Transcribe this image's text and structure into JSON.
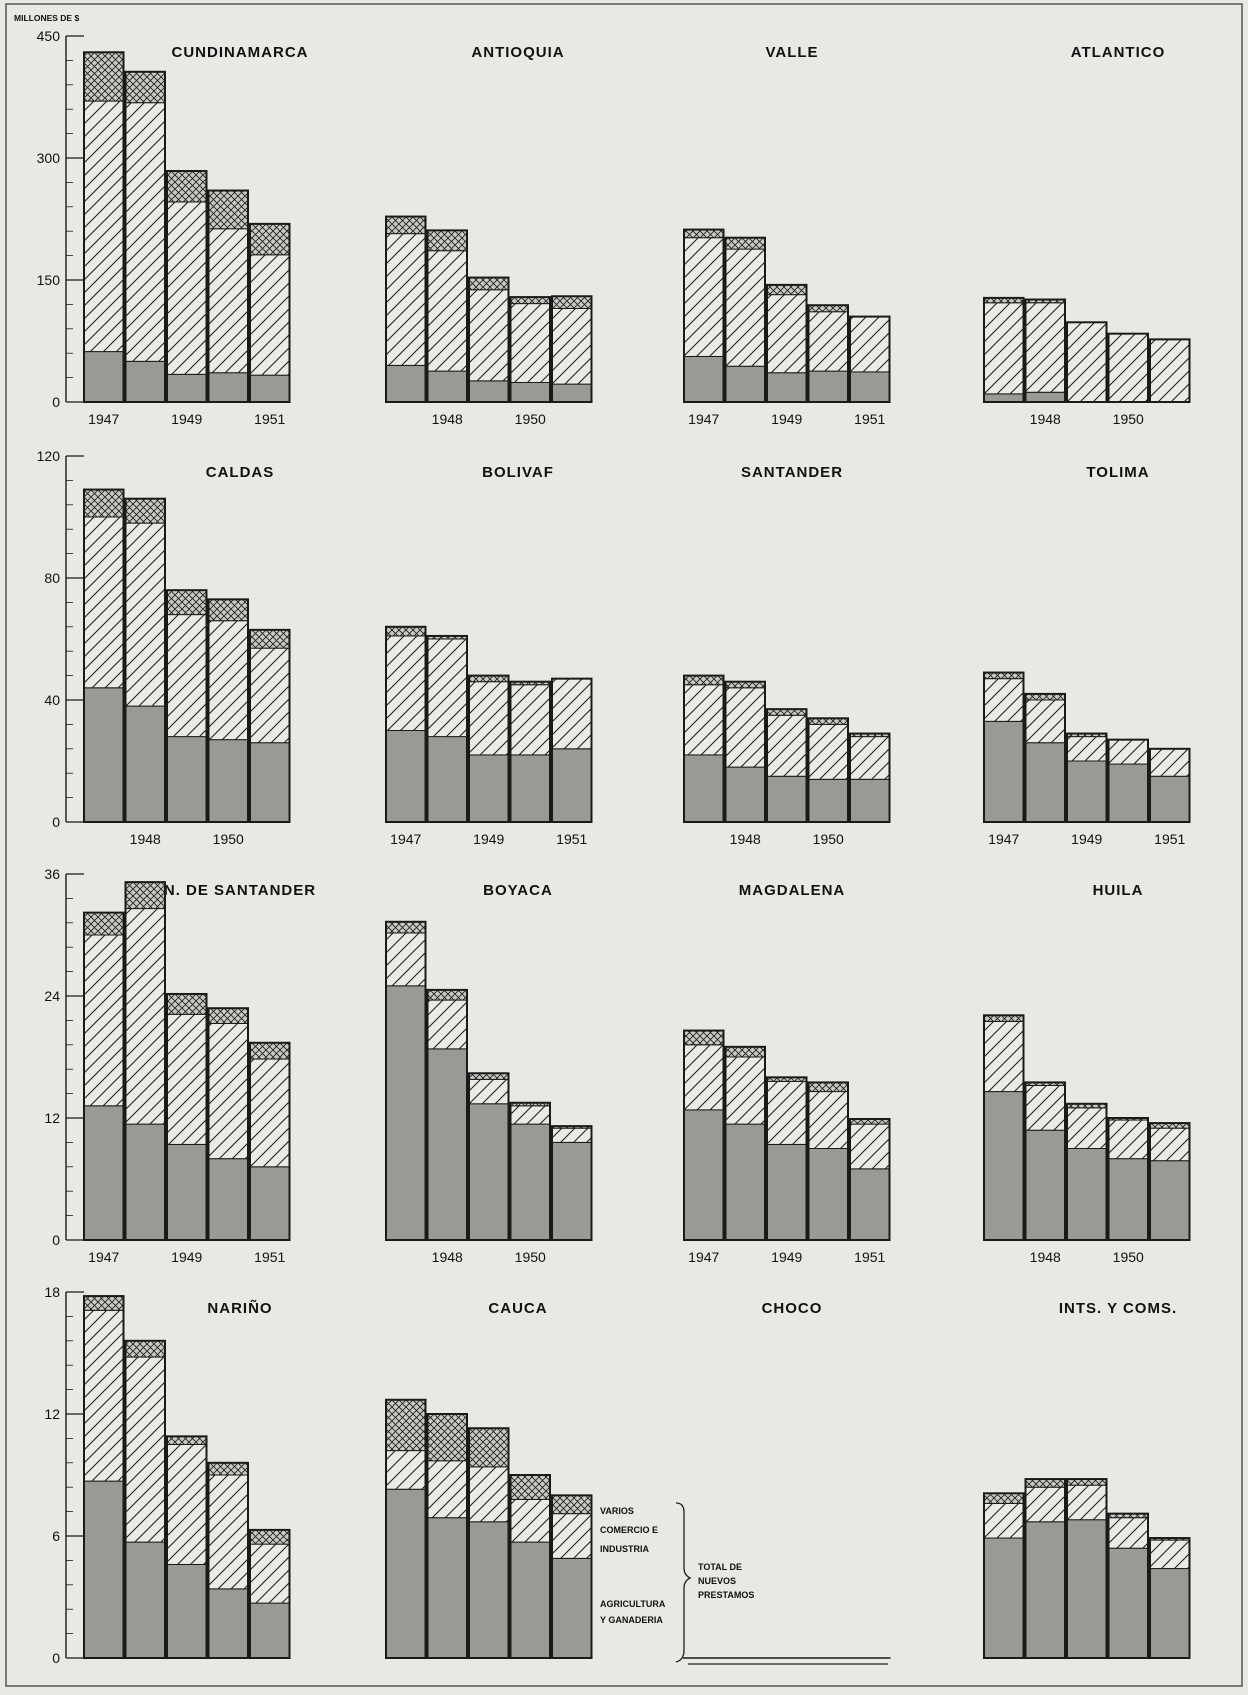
{
  "unit_label": "MILLONES DE $",
  "legend": {
    "varios": "VARIOS",
    "comercio_1": "COMERCIO E",
    "comercio_2": "INDUSTRIA",
    "agri_1": "AGRICULTURA",
    "agri_2": "Y GANADERIA",
    "total_1": "TOTAL DE",
    "total_2": "NUEVOS",
    "total_3": "PRESTAMOS"
  },
  "colors": {
    "background": "#e9e8e4",
    "agricultura": "#9b9994",
    "hatch": "#222222",
    "outline": "#1a1a1a"
  },
  "chart_data": {
    "type": "bar",
    "stacked": true,
    "categories": [
      "1947",
      "1948",
      "1949",
      "1950",
      "1951"
    ],
    "series_order": [
      "Agricultura y Ganaderia",
      "Comercio e Industria",
      "Varios"
    ],
    "rows": [
      {
        "ylim": [
          0,
          450
        ],
        "yticks": [
          "0",
          "150",
          "300",
          "450"
        ],
        "yticks_values": [
          0,
          150,
          300,
          450
        ],
        "panels": [
          {
            "title": "CUNDINAMARCA",
            "year_labels": [
              "1947",
              "",
              "1949",
              "",
              "1951"
            ],
            "agri": [
              62,
              50,
              34,
              36,
              33
            ],
            "comercio": [
              308,
              318,
              212,
              177,
              148
            ],
            "varios": [
              60,
              38,
              38,
              47,
              38
            ]
          },
          {
            "title": "ANTIOQUIA",
            "year_labels": [
              "",
              "1948",
              "",
              "1950",
              ""
            ],
            "agri": [
              45,
              38,
              26,
              24,
              22
            ],
            "comercio": [
              162,
              148,
              112,
              97,
              93
            ],
            "varios": [
              21,
              25,
              15,
              8,
              15
            ]
          },
          {
            "title": "VALLE",
            "year_labels": [
              "1947",
              "",
              "1949",
              "",
              "1951"
            ],
            "agri": [
              56,
              44,
              36,
              38,
              37
            ],
            "comercio": [
              146,
              144,
              96,
              73,
              68
            ],
            "varios": [
              10,
              14,
              12,
              8,
              0
            ]
          },
          {
            "title": "ATLANTICO",
            "year_labels": [
              "",
              "1948",
              "",
              "1950",
              ""
            ],
            "agri": [
              10,
              12,
              0,
              0,
              0
            ],
            "comercio": [
              112,
              110,
              98,
              84,
              77
            ],
            "varios": [
              6,
              4,
              0,
              0,
              0
            ]
          }
        ]
      },
      {
        "ylim": [
          0,
          120
        ],
        "yticks": [
          "0",
          "40",
          "80",
          "120"
        ],
        "yticks_values": [
          0,
          40,
          80,
          120
        ],
        "panels": [
          {
            "title": "CALDAS",
            "year_labels": [
              "",
              "1948",
              "",
              "1950",
              ""
            ],
            "agri": [
              44,
              38,
              28,
              27,
              26
            ],
            "comercio": [
              56,
              60,
              40,
              39,
              31
            ],
            "varios": [
              9,
              8,
              8,
              7,
              6
            ]
          },
          {
            "title": "BOLIVAF",
            "year_labels": [
              "1947",
              "",
              "1949",
              "",
              "1951"
            ],
            "agri": [
              30,
              28,
              22,
              22,
              24
            ],
            "comercio": [
              31,
              32,
              24,
              23,
              23
            ],
            "varios": [
              3,
              1,
              2,
              1,
              0
            ]
          },
          {
            "title": "SANTANDER",
            "year_labels": [
              "",
              "1948",
              "",
              "1950",
              ""
            ],
            "agri": [
              22,
              18,
              15,
              14,
              14
            ],
            "comercio": [
              23,
              26,
              20,
              18,
              14
            ],
            "varios": [
              3,
              2,
              2,
              2,
              1
            ]
          },
          {
            "title": "TOLIMA",
            "year_labels": [
              "1947",
              "",
              "1949",
              "",
              "1951"
            ],
            "agri": [
              33,
              26,
              20,
              19,
              15
            ],
            "comercio": [
              14,
              14,
              8,
              8,
              9
            ],
            "varios": [
              2,
              2,
              1,
              0,
              0
            ]
          }
        ]
      },
      {
        "ylim": [
          0,
          36
        ],
        "yticks": [
          "0",
          "12",
          "24",
          "36"
        ],
        "yticks_values": [
          0,
          12,
          24,
          36
        ],
        "panels": [
          {
            "title": "N. DE SANTANDER",
            "year_labels": [
              "1947",
              "",
              "1949",
              "",
              "1951"
            ],
            "agri": [
              13.2,
              11.4,
              9.4,
              8,
              7.2
            ],
            "comercio": [
              16.8,
              21.2,
              12.8,
              13.3,
              10.6
            ],
            "varios": [
              2.2,
              2.6,
              2,
              1.5,
              1.6
            ]
          },
          {
            "title": "BOYACA",
            "year_labels": [
              "",
              "1948",
              "",
              "1950",
              ""
            ],
            "agri": [
              25,
              18.8,
              13.4,
              11.4,
              9.6
            ],
            "comercio": [
              5.2,
              4.8,
              2.4,
              1.8,
              1.4
            ],
            "varios": [
              1.1,
              1,
              0.6,
              0.3,
              0.2
            ]
          },
          {
            "title": "MAGDALENA",
            "year_labels": [
              "1947",
              "",
              "1949",
              "",
              "1951"
            ],
            "agri": [
              12.8,
              11.4,
              9.4,
              9,
              7
            ],
            "comercio": [
              6.4,
              6.6,
              6.2,
              5.6,
              4.4
            ],
            "varios": [
              1.4,
              1,
              0.4,
              0.9,
              0.5
            ]
          },
          {
            "title": "HUILA",
            "year_labels": [
              "",
              "1948",
              "",
              "1950",
              ""
            ],
            "agri": [
              14.6,
              10.8,
              9,
              8,
              7.8
            ],
            "comercio": [
              6.9,
              4.4,
              4,
              3.8,
              3.2
            ],
            "varios": [
              0.6,
              0.3,
              0.4,
              0.2,
              0.5
            ]
          }
        ]
      },
      {
        "ylim": [
          0,
          18
        ],
        "yticks": [
          "0",
          "6",
          "12",
          "18"
        ],
        "yticks_values": [
          0,
          6,
          12,
          18
        ],
        "panels": [
          {
            "title": "NARIÑO",
            "year_labels": [
              "",
              "",
              "",
              "",
              ""
            ],
            "agri": [
              8.7,
              5.7,
              4.6,
              3.4,
              2.7
            ],
            "comercio": [
              8.4,
              9.1,
              5.9,
              5.6,
              2.9
            ],
            "varios": [
              0.7,
              0.8,
              0.4,
              0.6,
              0.7
            ]
          },
          {
            "title": "CAUCA",
            "year_labels": [
              "",
              "",
              "",
              "",
              ""
            ],
            "agri": [
              8.3,
              6.9,
              6.7,
              5.7,
              4.9
            ],
            "comercio": [
              1.9,
              2.8,
              2.7,
              2.1,
              2.2
            ],
            "varios": [
              2.5,
              2.3,
              1.9,
              1.2,
              0.9
            ]
          },
          {
            "title": "CHOCO",
            "year_labels": [
              "",
              "",
              "",
              "",
              ""
            ],
            "agri": [
              0,
              0,
              0,
              0,
              0
            ],
            "comercio": [
              0,
              0,
              0,
              0,
              0
            ],
            "varios": [
              0,
              0,
              0,
              0,
              0
            ]
          },
          {
            "title": "INTS. Y COMS.",
            "year_labels": [
              "",
              "",
              "",
              "",
              ""
            ],
            "agri": [
              5.9,
              6.7,
              6.8,
              5.4,
              4.4
            ],
            "comercio": [
              1.7,
              1.7,
              1.7,
              1.5,
              1.4
            ],
            "varios": [
              0.5,
              0.4,
              0.3,
              0.2,
              0.1
            ]
          }
        ]
      }
    ]
  }
}
